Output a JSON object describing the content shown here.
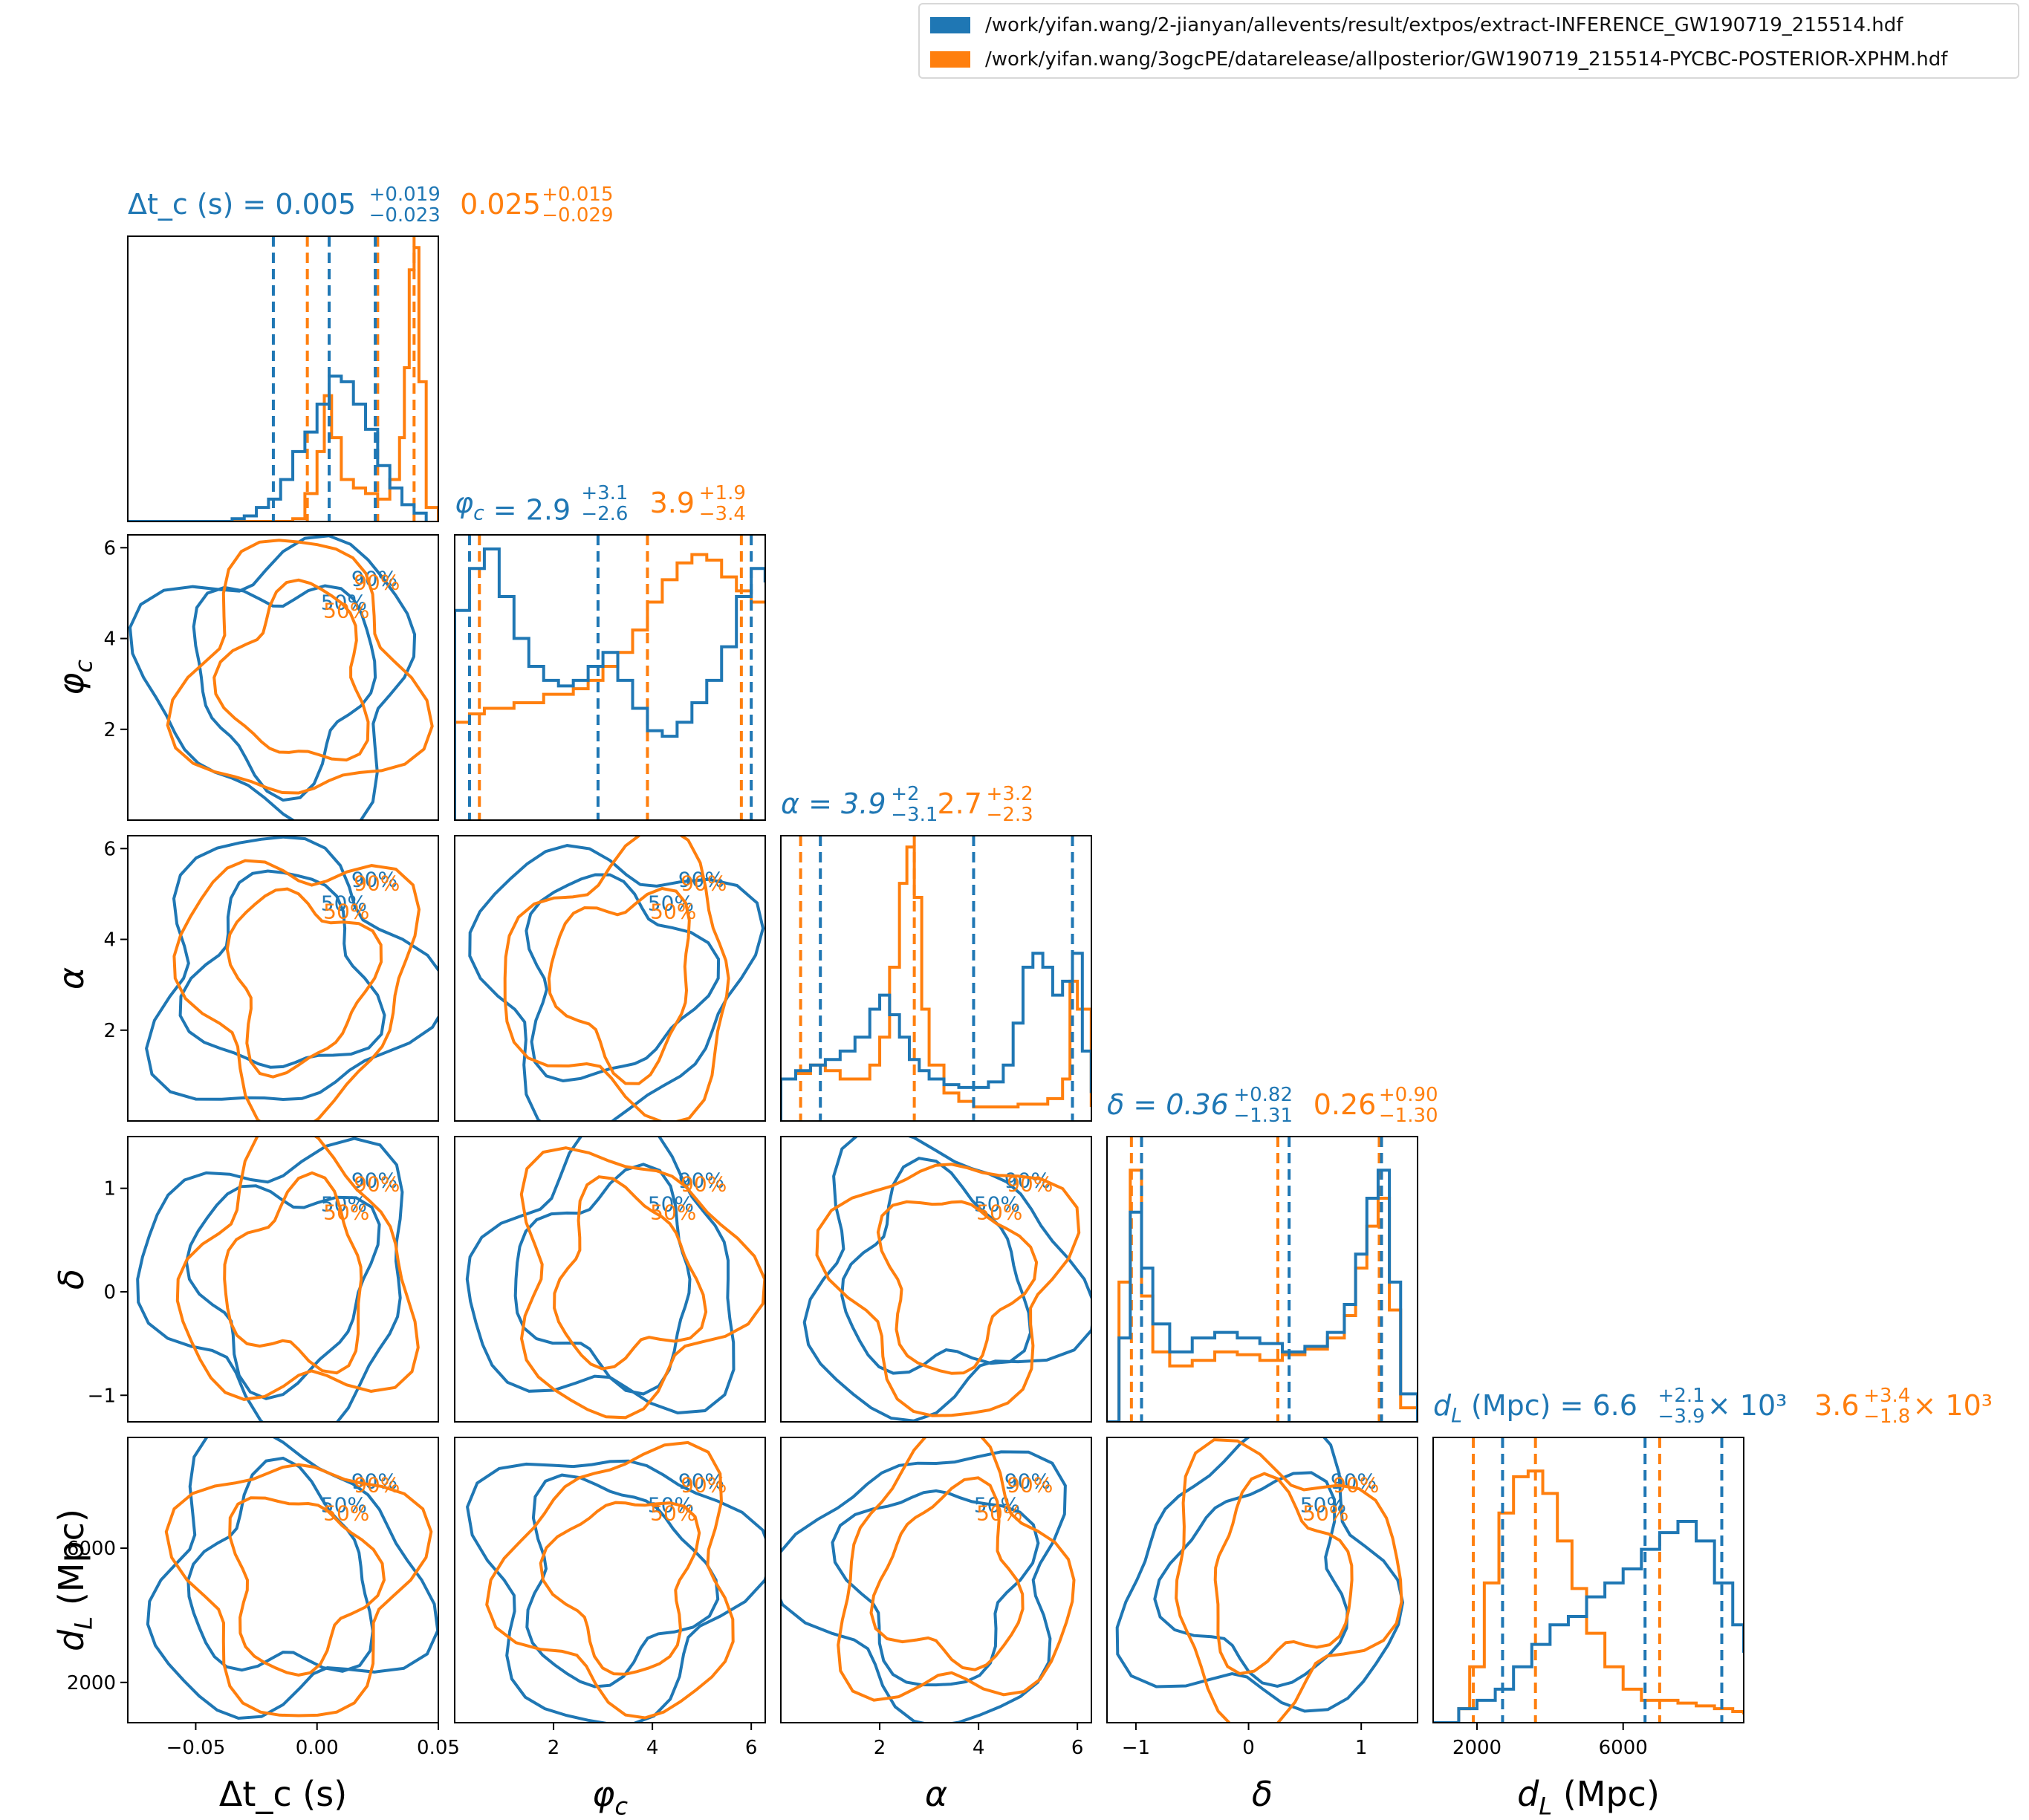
{
  "legend": [
    {
      "label": "/work/yifan.wang/2-jianyan/allevents/result/extpos/extract-INFERENCE_GW190719_215514.hdf",
      "color": "#1f77b4"
    },
    {
      "label": "/work/yifan.wang/3ogcPE/datarelease/allposterior/GW190719_215514-PYCBC-POSTERIOR-XPHM.hdf",
      "color": "#ff7f0e"
    }
  ],
  "chart_data": {
    "type": "corner",
    "series_colors": [
      "#1f77b4",
      "#ff7f0e"
    ],
    "contour_levels": [
      "50%",
      "90%"
    ],
    "parameters": [
      {
        "id": "dtc",
        "axis_label": "Δt_c (s)",
        "range": [
          -0.078,
          0.05
        ],
        "ticks": [
          -0.05,
          0.0,
          0.05
        ],
        "tick_labels": [
          "−0.05",
          "0.00",
          "0.05"
        ],
        "title": {
          "name": "Δt_c (s)",
          "blue": {
            "median": "0.005",
            "plus": "+0.019",
            "minus": "−0.023"
          },
          "orange": {
            "median": "0.025",
            "plus": "+0.015",
            "minus": "−0.029"
          }
        },
        "quantiles": {
          "blue": [
            -0.018,
            0.005,
            0.024
          ],
          "orange": [
            -0.004,
            0.025,
            0.04
          ]
        },
        "hist": {
          "blue": [
            [
              -0.078,
              0.0
            ],
            [
              -0.045,
              0.0
            ],
            [
              -0.035,
              0.01
            ],
            [
              -0.03,
              0.02
            ],
            [
              -0.025,
              0.05
            ],
            [
              -0.02,
              0.08
            ],
            [
              -0.015,
              0.15
            ],
            [
              -0.01,
              0.25
            ],
            [
              -0.005,
              0.32
            ],
            [
              0.0,
              0.42
            ],
            [
              0.005,
              0.52
            ],
            [
              0.01,
              0.5
            ],
            [
              0.015,
              0.42
            ],
            [
              0.02,
              0.33
            ],
            [
              0.025,
              0.2
            ],
            [
              0.03,
              0.12
            ],
            [
              0.035,
              0.06
            ],
            [
              0.04,
              0.03
            ],
            [
              0.045,
              0.0
            ]
          ],
          "orange": [
            [
              -0.078,
              0.0
            ],
            [
              -0.02,
              0.0
            ],
            [
              -0.01,
              0.01
            ],
            [
              -0.005,
              0.1
            ],
            [
              0.0,
              0.25
            ],
            [
              0.003,
              0.45
            ],
            [
              0.006,
              0.3
            ],
            [
              0.01,
              0.15
            ],
            [
              0.015,
              0.12
            ],
            [
              0.02,
              0.1
            ],
            [
              0.025,
              0.08
            ],
            [
              0.03,
              0.15
            ],
            [
              0.034,
              0.3
            ],
            [
              0.036,
              0.55
            ],
            [
              0.038,
              0.9
            ],
            [
              0.04,
              0.98
            ],
            [
              0.042,
              0.5
            ],
            [
              0.045,
              0.05
            ],
            [
              0.05,
              0.0
            ]
          ]
        }
      },
      {
        "id": "phic",
        "axis_label": "φ_c",
        "range": [
          0.0,
          6.2832
        ],
        "ticks": [
          2,
          4,
          6
        ],
        "tick_labels": [
          "2",
          "4",
          "6"
        ],
        "title": {
          "name": "φ_c",
          "blue": {
            "median": "2.9",
            "plus": "+3.1",
            "minus": "−2.6"
          },
          "orange": {
            "median": "3.9",
            "plus": "+1.9",
            "minus": "−3.4"
          }
        },
        "quantiles": {
          "blue": [
            0.3,
            2.9,
            6.0
          ],
          "orange": [
            0.5,
            3.9,
            5.8
          ]
        },
        "hist": {
          "blue": [
            [
              0.0,
              0.75
            ],
            [
              0.3,
              0.9
            ],
            [
              0.6,
              0.97
            ],
            [
              0.9,
              0.8
            ],
            [
              1.2,
              0.65
            ],
            [
              1.5,
              0.55
            ],
            [
              1.8,
              0.5
            ],
            [
              2.1,
              0.48
            ],
            [
              2.4,
              0.5
            ],
            [
              2.7,
              0.55
            ],
            [
              3.0,
              0.6
            ],
            [
              3.3,
              0.5
            ],
            [
              3.6,
              0.4
            ],
            [
              3.9,
              0.32
            ],
            [
              4.2,
              0.3
            ],
            [
              4.5,
              0.35
            ],
            [
              4.8,
              0.42
            ],
            [
              5.1,
              0.5
            ],
            [
              5.4,
              0.62
            ],
            [
              5.7,
              0.8
            ],
            [
              6.0,
              0.9
            ],
            [
              6.28,
              0.85
            ]
          ],
          "orange": [
            [
              0.0,
              0.35
            ],
            [
              0.3,
              0.38
            ],
            [
              0.6,
              0.4
            ],
            [
              0.9,
              0.4
            ],
            [
              1.2,
              0.42
            ],
            [
              1.5,
              0.42
            ],
            [
              1.8,
              0.45
            ],
            [
              2.1,
              0.45
            ],
            [
              2.4,
              0.47
            ],
            [
              2.7,
              0.5
            ],
            [
              3.0,
              0.55
            ],
            [
              3.3,
              0.6
            ],
            [
              3.6,
              0.68
            ],
            [
              3.9,
              0.78
            ],
            [
              4.2,
              0.86
            ],
            [
              4.5,
              0.92
            ],
            [
              4.8,
              0.95
            ],
            [
              5.1,
              0.93
            ],
            [
              5.4,
              0.87
            ],
            [
              5.7,
              0.82
            ],
            [
              6.0,
              0.78
            ],
            [
              6.28,
              0.78
            ]
          ]
        }
      },
      {
        "id": "alpha",
        "axis_label": "α",
        "range": [
          0.0,
          6.2832
        ],
        "ticks": [
          2,
          4,
          6
        ],
        "tick_labels": [
          "2",
          "4",
          "6"
        ],
        "title": {
          "name": "α",
          "blue": {
            "median": "3.9",
            "plus": "+2",
            "minus": "−3.1"
          },
          "orange": {
            "median": "2.7",
            "plus": "+3.2",
            "minus": "−2.3"
          }
        },
        "quantiles": {
          "blue": [
            0.8,
            3.9,
            5.9
          ],
          "orange": [
            0.4,
            2.7,
            5.9
          ]
        },
        "hist": {
          "blue": [
            [
              0.0,
              0.15
            ],
            [
              0.3,
              0.18
            ],
            [
              0.6,
              0.2
            ],
            [
              0.9,
              0.22
            ],
            [
              1.2,
              0.25
            ],
            [
              1.5,
              0.3
            ],
            [
              1.8,
              0.4
            ],
            [
              2.0,
              0.45
            ],
            [
              2.2,
              0.38
            ],
            [
              2.4,
              0.3
            ],
            [
              2.6,
              0.22
            ],
            [
              2.8,
              0.18
            ],
            [
              3.0,
              0.15
            ],
            [
              3.3,
              0.13
            ],
            [
              3.6,
              0.12
            ],
            [
              3.9,
              0.12
            ],
            [
              4.2,
              0.14
            ],
            [
              4.5,
              0.2
            ],
            [
              4.7,
              0.35
            ],
            [
              4.9,
              0.55
            ],
            [
              5.1,
              0.6
            ],
            [
              5.3,
              0.55
            ],
            [
              5.5,
              0.45
            ],
            [
              5.7,
              0.5
            ],
            [
              5.9,
              0.6
            ],
            [
              6.1,
              0.25
            ],
            [
              6.28,
              0.1
            ]
          ],
          "orange": [
            [
              0.0,
              0.15
            ],
            [
              0.3,
              0.17
            ],
            [
              0.6,
              0.2
            ],
            [
              0.9,
              0.18
            ],
            [
              1.2,
              0.15
            ],
            [
              1.5,
              0.15
            ],
            [
              1.8,
              0.2
            ],
            [
              2.0,
              0.3
            ],
            [
              2.2,
              0.55
            ],
            [
              2.4,
              0.85
            ],
            [
              2.55,
              0.98
            ],
            [
              2.7,
              0.8
            ],
            [
              2.85,
              0.4
            ],
            [
              3.0,
              0.2
            ],
            [
              3.3,
              0.1
            ],
            [
              3.6,
              0.07
            ],
            [
              3.9,
              0.05
            ],
            [
              4.2,
              0.05
            ],
            [
              4.5,
              0.05
            ],
            [
              4.8,
              0.06
            ],
            [
              5.1,
              0.06
            ],
            [
              5.4,
              0.08
            ],
            [
              5.7,
              0.15
            ],
            [
              5.85,
              0.5
            ],
            [
              6.0,
              0.4
            ],
            [
              6.28,
              0.05
            ]
          ]
        }
      },
      {
        "id": "delta",
        "axis_label": "δ",
        "range": [
          -1.2566,
          1.5
        ],
        "ticks": [
          -1,
          0,
          1
        ],
        "tick_labels": [
          "−1",
          "0",
          "1"
        ],
        "title": {
          "name": "δ",
          "blue": {
            "median": "0.36",
            "plus": "+0.82",
            "minus": "−1.31"
          },
          "orange": {
            "median": "0.26",
            "plus": "+0.90",
            "minus": "−1.30"
          }
        },
        "quantiles": {
          "blue": [
            -0.95,
            0.36,
            1.18
          ],
          "orange": [
            -1.04,
            0.26,
            1.16
          ]
        },
        "hist": {
          "blue": [
            [
              -1.2566,
              0.0
            ],
            [
              -1.15,
              0.3
            ],
            [
              -1.05,
              0.75
            ],
            [
              -0.95,
              0.55
            ],
            [
              -0.85,
              0.35
            ],
            [
              -0.7,
              0.25
            ],
            [
              -0.5,
              0.3
            ],
            [
              -0.3,
              0.32
            ],
            [
              -0.1,
              0.3
            ],
            [
              0.1,
              0.28
            ],
            [
              0.3,
              0.25
            ],
            [
              0.5,
              0.27
            ],
            [
              0.7,
              0.32
            ],
            [
              0.85,
              0.42
            ],
            [
              0.95,
              0.6
            ],
            [
              1.05,
              0.8
            ],
            [
              1.15,
              0.9
            ],
            [
              1.25,
              0.5
            ],
            [
              1.35,
              0.1
            ],
            [
              1.5,
              0.0
            ]
          ],
          "orange": [
            [
              -1.2566,
              0.0
            ],
            [
              -1.15,
              0.5
            ],
            [
              -1.05,
              0.9
            ],
            [
              -0.95,
              0.45
            ],
            [
              -0.85,
              0.25
            ],
            [
              -0.7,
              0.2
            ],
            [
              -0.5,
              0.22
            ],
            [
              -0.3,
              0.25
            ],
            [
              -0.1,
              0.24
            ],
            [
              0.1,
              0.22
            ],
            [
              0.3,
              0.24
            ],
            [
              0.5,
              0.26
            ],
            [
              0.7,
              0.3
            ],
            [
              0.85,
              0.38
            ],
            [
              0.95,
              0.55
            ],
            [
              1.05,
              0.7
            ],
            [
              1.15,
              0.8
            ],
            [
              1.25,
              0.4
            ],
            [
              1.35,
              0.05
            ],
            [
              1.5,
              0.0
            ]
          ]
        }
      },
      {
        "id": "dl",
        "axis_label": "d_L (Mpc)",
        "range": [
          800,
          9300
        ],
        "ticks": [
          2000,
          6000
        ],
        "tick_labels": [
          "2000",
          "6000"
        ],
        "title": {
          "name": "d_L (Mpc)",
          "blue": {
            "median": "6.6",
            "plus": "+2.1",
            "minus": "−3.9",
            "scale": "× 10³"
          },
          "orange": {
            "median": "3.6",
            "plus": "+3.4",
            "minus": "−1.8",
            "scale": "× 10³"
          }
        },
        "quantiles": {
          "blue": [
            2700,
            6600,
            8700
          ],
          "orange": [
            1900,
            3600,
            7000
          ]
        },
        "hist": {
          "blue": [
            [
              800,
              0.0
            ],
            [
              1500,
              0.05
            ],
            [
              2000,
              0.08
            ],
            [
              2500,
              0.12
            ],
            [
              3000,
              0.2
            ],
            [
              3500,
              0.28
            ],
            [
              4000,
              0.35
            ],
            [
              4500,
              0.38
            ],
            [
              5000,
              0.45
            ],
            [
              5500,
              0.5
            ],
            [
              6000,
              0.55
            ],
            [
              6500,
              0.62
            ],
            [
              7000,
              0.68
            ],
            [
              7500,
              0.72
            ],
            [
              8000,
              0.65
            ],
            [
              8500,
              0.5
            ],
            [
              9000,
              0.35
            ],
            [
              9300,
              0.25
            ]
          ],
          "orange": [
            [
              800,
              0.0
            ],
            [
              1500,
              0.05
            ],
            [
              1800,
              0.2
            ],
            [
              2200,
              0.5
            ],
            [
              2600,
              0.75
            ],
            [
              3000,
              0.88
            ],
            [
              3400,
              0.9
            ],
            [
              3800,
              0.82
            ],
            [
              4200,
              0.65
            ],
            [
              4600,
              0.48
            ],
            [
              5000,
              0.32
            ],
            [
              5500,
              0.2
            ],
            [
              6000,
              0.12
            ],
            [
              6500,
              0.08
            ],
            [
              7000,
              0.08
            ],
            [
              7500,
              0.07
            ],
            [
              8000,
              0.06
            ],
            [
              8500,
              0.05
            ],
            [
              9000,
              0.04
            ],
            [
              9300,
              0.03
            ]
          ]
        }
      }
    ]
  }
}
